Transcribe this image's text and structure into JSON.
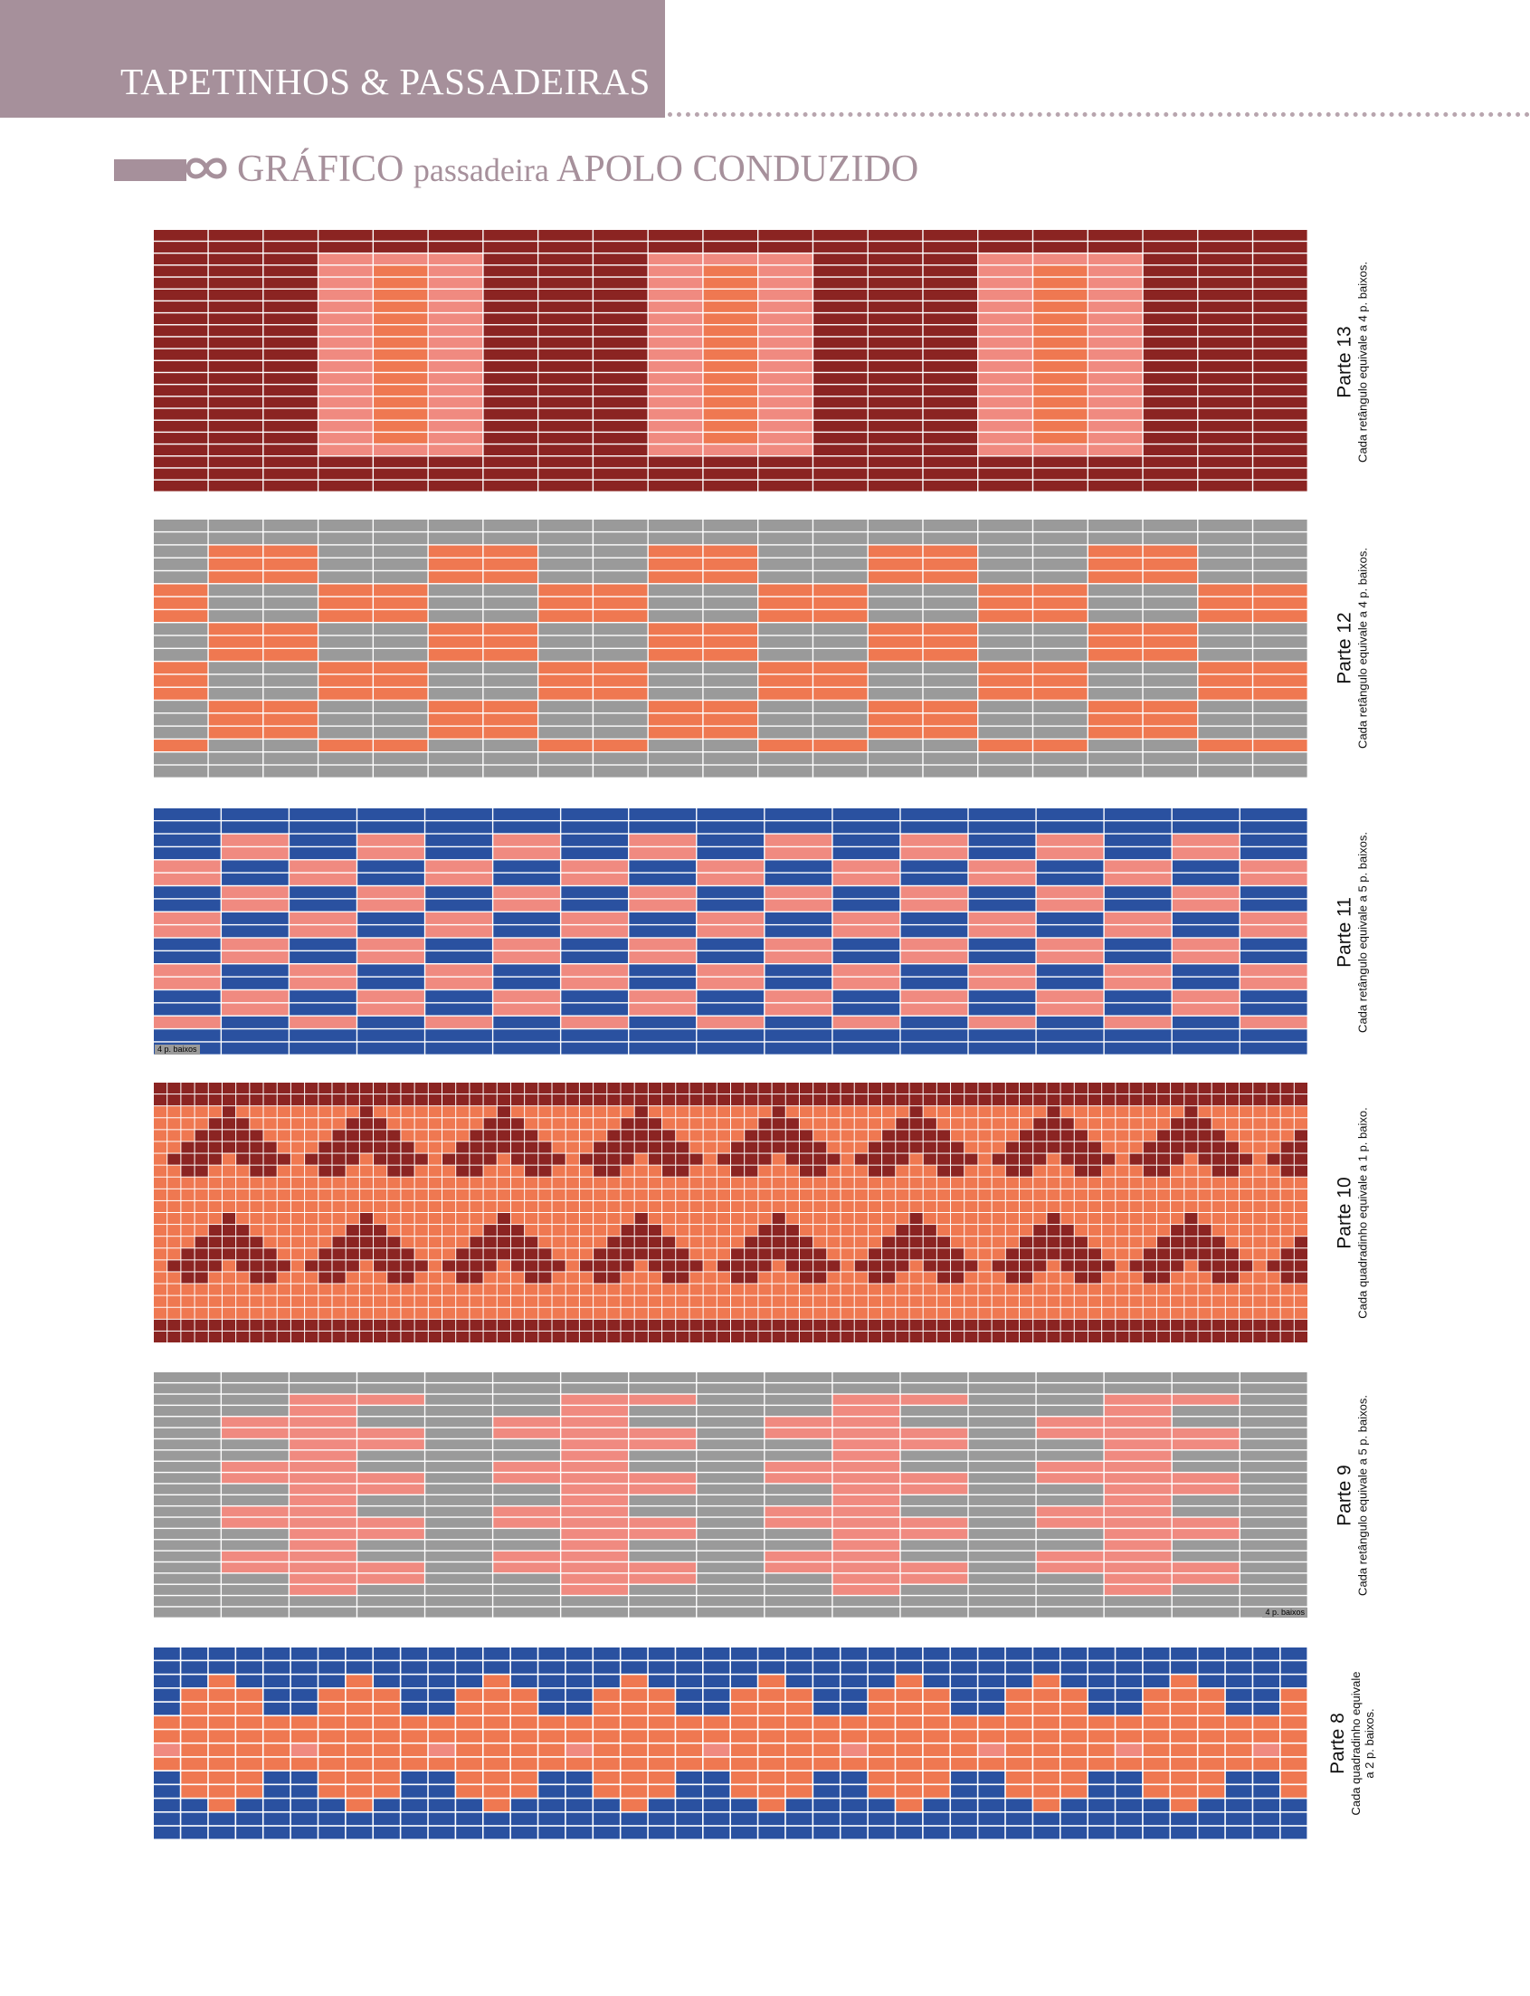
{
  "header": {
    "section_title": "TAPETINHOS & PASSADEIRAS"
  },
  "subtitle": {
    "part1": "GRÁFICO",
    "part2": "passadeira",
    "part3": "APOLO CONDUZIDO"
  },
  "colors": {
    "header_bg": "#a6909b",
    "dark_red": "#8b2422",
    "salmon": "#f08a80",
    "orange": "#ef7851",
    "gray": "#9a9a9a",
    "blue": "#2a51a0",
    "grid_line": "#ffffff"
  },
  "charts": [
    {
      "name": "Parte 13",
      "note": "Cada retângulo equivale a 4 p. baixos."
    },
    {
      "name": "Parte 12",
      "note": "Cada retângulo equivale a 4 p. baixos."
    },
    {
      "name": "Parte 11",
      "note": "Cada retângulo equivale a 5 p. baixos.",
      "tag": "4 p. baixos"
    },
    {
      "name": "Parte 10",
      "note": "Cada quadradinho equivale a 1 p. baixo."
    },
    {
      "name": "Parte 9",
      "note": "Cada retângulo equivale a 5 p. baixos.",
      "tag": "4 p. baixos"
    },
    {
      "name": "Parte 8",
      "note_line1": "Cada quadradinho equivale",
      "note_line2": "a 2 p. baixos."
    }
  ]
}
